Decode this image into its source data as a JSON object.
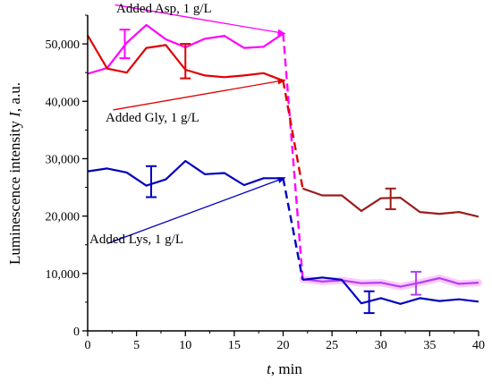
{
  "chart_data": {
    "type": "line",
    "xlabel_var": "t",
    "xlabel_unit": ", min",
    "ylabel_prefix": "Luminescence intensity ",
    "ylabel_var": "I",
    "ylabel_suffix": ", a.u.",
    "xlim": [
      0,
      40
    ],
    "ylim": [
      0,
      55000
    ],
    "x_ticks": [
      0,
      5,
      10,
      15,
      20,
      25,
      30,
      35,
      40
    ],
    "x_tick_labels": [
      "0",
      "5",
      "10",
      "15",
      "20",
      "25",
      "30",
      "35",
      "40"
    ],
    "y_ticks": [
      0,
      10000,
      20000,
      30000,
      40000,
      50000
    ],
    "y_tick_labels": [
      "0",
      "10,000",
      "20,000",
      "30,000",
      "40,000",
      "50,000"
    ],
    "grid": false,
    "colors": {
      "asp": "#ff00ff",
      "asp_after": "#b040f0",
      "gly": "#e00000",
      "gly_after": "#9b1c1c",
      "lys": "#0000c0",
      "asp_band": "#ffc8ff"
    },
    "series": [
      {
        "key": "asp",
        "color": "#ff00ff",
        "after_color": "#b040f0",
        "before": [
          [
            0,
            44800
          ],
          [
            2,
            45800
          ],
          [
            4,
            50200
          ],
          [
            6,
            53300
          ],
          [
            8,
            50800
          ],
          [
            10,
            49400
          ],
          [
            12,
            50900
          ],
          [
            14,
            51400
          ],
          [
            16,
            49300
          ],
          [
            18,
            49500
          ],
          [
            20,
            51800
          ]
        ],
        "drop": [
          [
            20,
            51800
          ],
          [
            22,
            9000
          ]
        ],
        "after": [
          [
            22,
            9000
          ],
          [
            24,
            8600
          ],
          [
            26,
            8800
          ],
          [
            28,
            8300
          ],
          [
            30,
            8400
          ],
          [
            32,
            7700
          ],
          [
            34,
            8400
          ],
          [
            36,
            9200
          ],
          [
            38,
            8200
          ],
          [
            40,
            8400
          ]
        ],
        "errorbars": [
          [
            3.8,
            50000,
            2500
          ],
          [
            33.6,
            8300,
            2000
          ]
        ]
      },
      {
        "key": "gly",
        "color": "#e00000",
        "after_color": "#9b1c1c",
        "before": [
          [
            0,
            51500
          ],
          [
            2,
            45700
          ],
          [
            4,
            45000
          ],
          [
            6,
            49300
          ],
          [
            8,
            49800
          ],
          [
            10,
            45500
          ],
          [
            12,
            44500
          ],
          [
            14,
            44200
          ],
          [
            16,
            44500
          ],
          [
            18,
            44900
          ],
          [
            20,
            43600
          ]
        ],
        "drop": [
          [
            20,
            43600
          ],
          [
            22,
            24800
          ]
        ],
        "after": [
          [
            22,
            24800
          ],
          [
            24,
            23600
          ],
          [
            26,
            23600
          ],
          [
            28,
            20900
          ],
          [
            30,
            23100
          ],
          [
            32,
            23200
          ],
          [
            34,
            20700
          ],
          [
            36,
            20400
          ],
          [
            38,
            20700
          ],
          [
            40,
            19900
          ]
        ],
        "errorbars": [
          [
            10,
            47000,
            3000
          ],
          [
            31,
            23000,
            1800
          ]
        ]
      },
      {
        "key": "lys",
        "color": "#0000c0",
        "before": [
          [
            0,
            27800
          ],
          [
            2,
            28300
          ],
          [
            4,
            27600
          ],
          [
            6,
            25300
          ],
          [
            8,
            26400
          ],
          [
            10,
            29600
          ],
          [
            12,
            27300
          ],
          [
            14,
            27500
          ],
          [
            16,
            25400
          ],
          [
            18,
            26600
          ],
          [
            20,
            26600
          ]
        ],
        "drop": [
          [
            20,
            26600
          ],
          [
            22,
            8900
          ]
        ],
        "after": [
          [
            22,
            8900
          ],
          [
            24,
            9300
          ],
          [
            26,
            8900
          ],
          [
            28,
            4800
          ],
          [
            30,
            5700
          ],
          [
            32,
            4700
          ],
          [
            34,
            5700
          ],
          [
            36,
            5200
          ],
          [
            38,
            5500
          ],
          [
            40,
            5100
          ]
        ],
        "errorbars": [
          [
            6.5,
            26000,
            2700
          ],
          [
            28.8,
            5000,
            1900
          ]
        ]
      }
    ],
    "annotations": [
      {
        "key": "asp",
        "text": "Added Asp, 1 g/L",
        "color": "#ff00ff",
        "arrow_from": [
          2.8,
          56800
        ],
        "arrow_to": [
          20.2,
          51800
        ]
      },
      {
        "key": "gly",
        "text": "Added Gly, 1 g/L",
        "color": "#e00000",
        "arrow_from": [
          2.6,
          38500
        ],
        "arrow_to": [
          20.2,
          43700
        ]
      },
      {
        "key": "lys",
        "text": "Added Lys, 1 g/L",
        "color": "#0000c0",
        "arrow_from": [
          2.0,
          15200
        ],
        "arrow_to": [
          20.2,
          26700
        ]
      }
    ]
  }
}
